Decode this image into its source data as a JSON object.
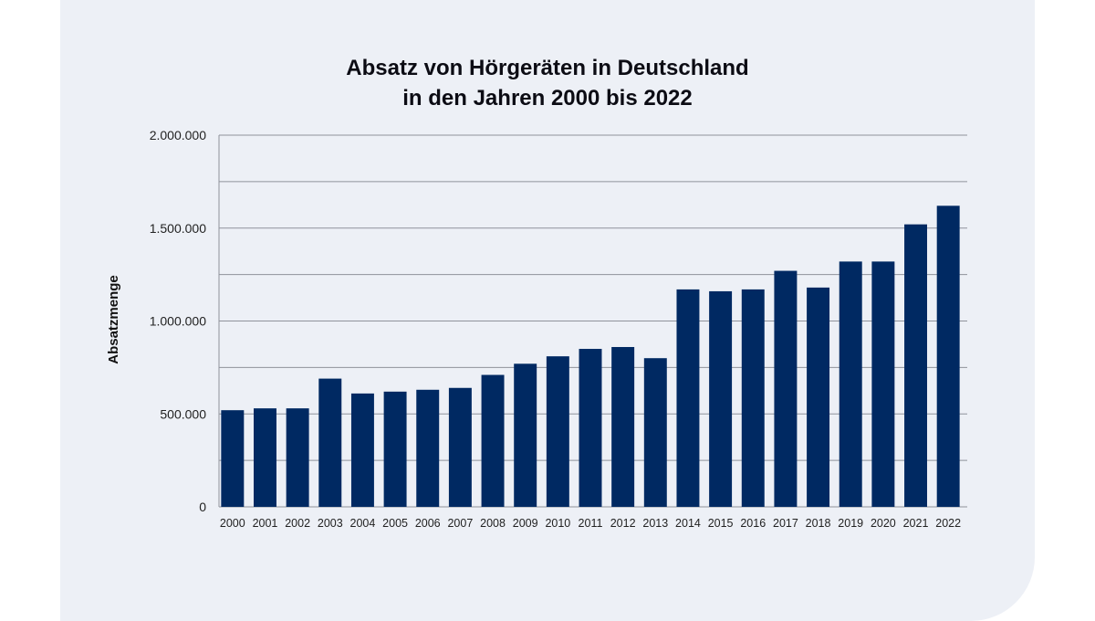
{
  "chart_data": {
    "type": "bar",
    "title_lines": [
      "Absatz von Hörgeräten in Deutschland",
      "in den Jahren 2000 bis 2022"
    ],
    "xlabel": "",
    "ylabel": "Absatzmenge",
    "ylim": [
      0,
      2000000
    ],
    "yticks": [
      {
        "value": 0,
        "label": "0"
      },
      {
        "value": 500000,
        "label": "500.000"
      },
      {
        "value": 1000000,
        "label": "1.000.000"
      },
      {
        "value": 1500000,
        "label": "1.500.000"
      },
      {
        "value": 2000000,
        "label": "2.000.000"
      }
    ],
    "grid_step": 250000,
    "grid": true,
    "bar_color": "#002962",
    "categories": [
      "2000",
      "2001",
      "2002",
      "2003",
      "2004",
      "2005",
      "2006",
      "2007",
      "2008",
      "2009",
      "2010",
      "2011",
      "2012",
      "2013",
      "2014",
      "2015",
      "2016",
      "2017",
      "2018",
      "2019",
      "2020",
      "2021",
      "2022"
    ],
    "values": [
      520000,
      530000,
      530000,
      690000,
      610000,
      620000,
      630000,
      640000,
      710000,
      770000,
      810000,
      850000,
      860000,
      800000,
      1170000,
      1160000,
      1170000,
      1270000,
      1180000,
      1320000,
      1320000,
      1520000,
      1620000
    ]
  }
}
